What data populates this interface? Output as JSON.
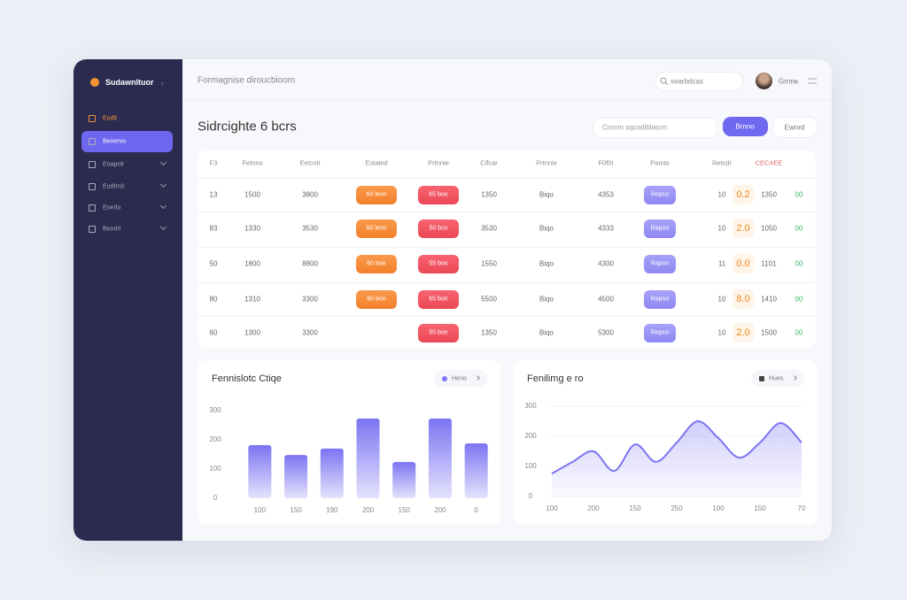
{
  "sidebar": {
    "brand": "Sudawnltuor",
    "items": [
      "Eodlt",
      "Beoervo",
      "Eoapnlr",
      "Eudtrn0",
      "Eoerlo",
      "Beorlrl"
    ]
  },
  "header": {
    "title": "Formagnise diroucbioom",
    "search": "searbdcas",
    "user": "Grnne"
  },
  "page": {
    "title": "Sidrcighte 6 bcrs",
    "filter": "Cnnrm sqcodibleicrn",
    "primary_button": "Brnno",
    "secondary_button": "Ewnrd"
  },
  "table": {
    "columns": [
      "F3",
      "Fetnno",
      "Eetcnit",
      "Estated",
      "Prtnnie",
      "Cifcar",
      "Prtnnie",
      "F0f0t",
      "Pamto",
      "Retcdr",
      null,
      "CECAEE",
      null
    ],
    "rows": [
      [
        "13",
        "1500",
        "3800",
        "60 lenn",
        "65 boo",
        "1350",
        "Biqo",
        "4353",
        "Repco",
        "10",
        "0.2",
        "1350",
        "00"
      ],
      [
        "83",
        "1330",
        "3530",
        "60 lenn",
        "50 bcn",
        "3530",
        "Biqo",
        "4333",
        "Rapoo",
        "10",
        "2.0",
        "1050",
        "00"
      ],
      [
        "50",
        "1800",
        "8800",
        "60 tear",
        "55 boo",
        "1550",
        "Biqo",
        "4300",
        "Rapsn",
        "11",
        "0.0",
        "1101",
        "00"
      ],
      [
        "80",
        "1310",
        "3300",
        "60 bon",
        "65 bon",
        "5500",
        "Biqo",
        "4500",
        "Rapoo",
        "10",
        "8.0",
        "1410",
        "00"
      ],
      [
        "60",
        "1300",
        "3300",
        null,
        "55 bon",
        "1350",
        "Biqo",
        "5300",
        "Repco",
        "10",
        "2.0",
        "1500",
        "00"
      ]
    ]
  },
  "charts": [
    {
      "type": "bar",
      "title": "Fennislotc Ctiqe",
      "legend": "Heno",
      "color": "#7c74f2",
      "categories": [
        "100",
        "150",
        "190",
        "200",
        "150",
        "200",
        "0"
      ],
      "values": [
        182,
        148,
        170,
        273,
        124,
        273,
        188
      ],
      "ylim": [
        0,
        300
      ],
      "yticks": [
        0,
        100,
        200,
        300
      ]
    },
    {
      "type": "area",
      "title": "Fenilimg e ro",
      "legend": "Hues",
      "color": "#7c74f2",
      "categories": [
        "100",
        null,
        "200",
        null,
        "150",
        null,
        "250",
        null,
        "100",
        null,
        "150",
        null,
        "70"
      ],
      "values": [
        76,
        115,
        150,
        85,
        173,
        115,
        179,
        250,
        194,
        129,
        179,
        244,
        179
      ],
      "ylim": [
        0,
        300
      ],
      "yticks": [
        0,
        100,
        200,
        300
      ]
    }
  ]
}
